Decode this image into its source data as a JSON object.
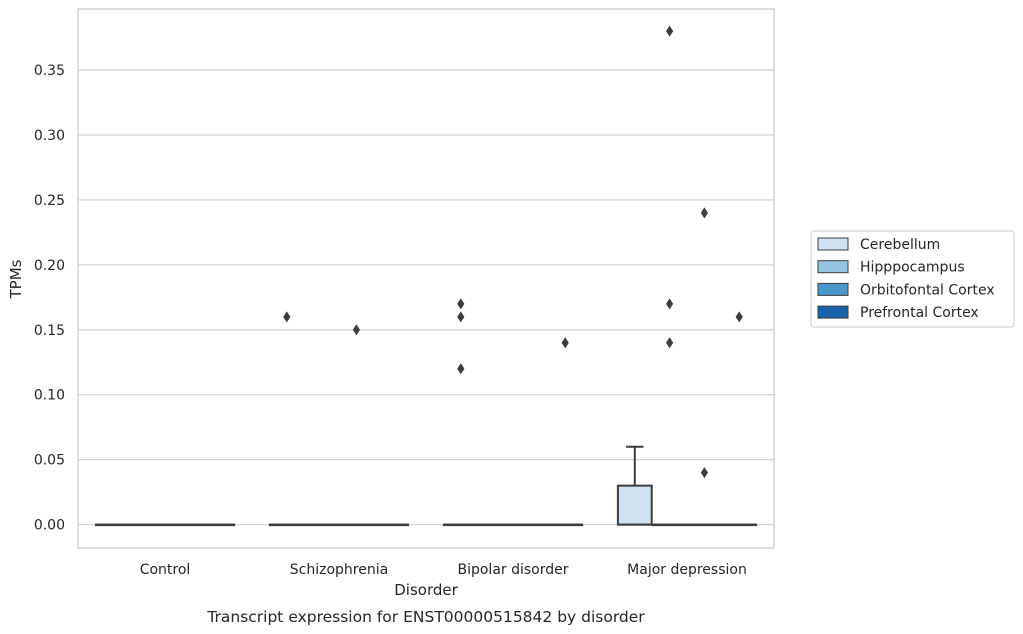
{
  "chart_data": {
    "type": "box",
    "caption": "Transcript expression for ENST00000515842 by disorder",
    "xlabel": "Disorder",
    "ylabel": "TPMs",
    "categories": [
      "Control",
      "Schizophrenia",
      "Bipolar disorder",
      "Major depression"
    ],
    "ylim": [
      -0.018,
      0.397
    ],
    "yticks": [
      0.0,
      0.05,
      0.1,
      0.15,
      0.2,
      0.25,
      0.3,
      0.35
    ],
    "ytick_labels": [
      "0.00",
      "0.05",
      "0.10",
      "0.15",
      "0.20",
      "0.25",
      "0.30",
      "0.35"
    ],
    "grid": "horizontal",
    "legend_position": "right",
    "series": [
      {
        "name": "Cerebellum",
        "color": "#d0e1f2",
        "boxes": [
          {
            "q1": 0,
            "median": 0,
            "q3": 0,
            "whisker_low": 0,
            "whisker_high": 0,
            "outliers": []
          },
          {
            "q1": 0,
            "median": 0,
            "q3": 0,
            "whisker_low": 0,
            "whisker_high": 0,
            "outliers": [
              0.16
            ]
          },
          {
            "q1": 0,
            "median": 0,
            "q3": 0,
            "whisker_low": 0,
            "whisker_high": 0,
            "outliers": [
              0.12,
              0.16,
              0.17
            ]
          },
          {
            "q1": 0,
            "median": 0,
            "q3": 0.03,
            "whisker_low": 0,
            "whisker_high": 0.06,
            "outliers": []
          }
        ]
      },
      {
        "name": "Hipppocampus",
        "color": "#94c4df",
        "boxes": [
          {
            "q1": 0,
            "median": 0,
            "q3": 0,
            "whisker_low": 0,
            "whisker_high": 0,
            "outliers": []
          },
          {
            "q1": 0,
            "median": 0,
            "q3": 0,
            "whisker_low": 0,
            "whisker_high": 0,
            "outliers": []
          },
          {
            "q1": 0,
            "median": 0,
            "q3": 0,
            "whisker_low": 0,
            "whisker_high": 0,
            "outliers": []
          },
          {
            "q1": 0,
            "median": 0,
            "q3": 0,
            "whisker_low": 0,
            "whisker_high": 0,
            "outliers": [
              0.14,
              0.17,
              0.38
            ]
          }
        ]
      },
      {
        "name": "Orbitofontal Cortex",
        "color": "#4a98c9",
        "boxes": [
          {
            "q1": 0,
            "median": 0,
            "q3": 0,
            "whisker_low": 0,
            "whisker_high": 0,
            "outliers": []
          },
          {
            "q1": 0,
            "median": 0,
            "q3": 0,
            "whisker_low": 0,
            "whisker_high": 0,
            "outliers": [
              0.15
            ]
          },
          {
            "q1": 0,
            "median": 0,
            "q3": 0,
            "whisker_low": 0,
            "whisker_high": 0,
            "outliers": []
          },
          {
            "q1": 0,
            "median": 0,
            "q3": 0,
            "whisker_low": 0,
            "whisker_high": 0,
            "outliers": [
              0.04,
              0.24
            ]
          }
        ]
      },
      {
        "name": "Prefrontal Cortex",
        "color": "#1764ab",
        "boxes": [
          {
            "q1": 0,
            "median": 0,
            "q3": 0,
            "whisker_low": 0,
            "whisker_high": 0,
            "outliers": []
          },
          {
            "q1": 0,
            "median": 0,
            "q3": 0,
            "whisker_low": 0,
            "whisker_high": 0,
            "outliers": []
          },
          {
            "q1": 0,
            "median": 0,
            "q3": 0,
            "whisker_low": 0,
            "whisker_high": 0,
            "outliers": [
              0.14
            ]
          },
          {
            "q1": 0,
            "median": 0,
            "q3": 0,
            "whisker_low": 0,
            "whisker_high": 0,
            "outliers": [
              0.16
            ]
          }
        ]
      }
    ]
  }
}
